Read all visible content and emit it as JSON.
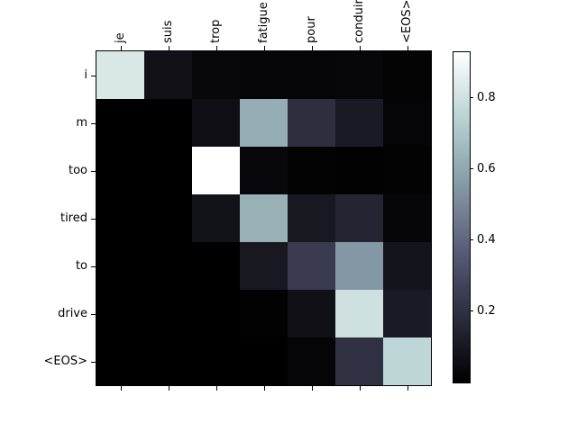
{
  "figure": {
    "background": "#ffffff",
    "text_color": "#000000"
  },
  "chart_data": {
    "type": "heatmap",
    "title": "",
    "colormap": "bone",
    "x_tick_labels": [
      "je",
      "suis",
      "trop",
      "fatigue",
      "pour",
      "conduire",
      "<EOS>"
    ],
    "y_tick_labels": [
      "i",
      "m",
      "too",
      "tired",
      "to",
      "drive",
      "<EOS>"
    ],
    "x_axis_position": "top",
    "grid": false,
    "vmin": 0,
    "vmax": 0.93,
    "matrix": [
      [
        0.83,
        0.07,
        0.034,
        0.025,
        0.022,
        0.03,
        0.016
      ],
      [
        0.0,
        0.0,
        0.06,
        0.62,
        0.19,
        0.11,
        0.02
      ],
      [
        0.0,
        0.0,
        0.93,
        0.035,
        0.013,
        0.01,
        0.013
      ],
      [
        0.0,
        0.0,
        0.075,
        0.63,
        0.1,
        0.15,
        0.025
      ],
      [
        0.0,
        0.0,
        0.0,
        0.1,
        0.24,
        0.55,
        0.083
      ],
      [
        0.0,
        0.0,
        0.0,
        0.01,
        0.067,
        0.8,
        0.11
      ],
      [
        0.0,
        0.0,
        0.0,
        0.0,
        0.02,
        0.2,
        0.76
      ]
    ],
    "colorbar": {
      "position": "right",
      "ticks": [
        0.2,
        0.4,
        0.6,
        0.8
      ],
      "tick_labels": [
        "0.2",
        "0.4",
        "0.6",
        "0.8"
      ]
    }
  }
}
